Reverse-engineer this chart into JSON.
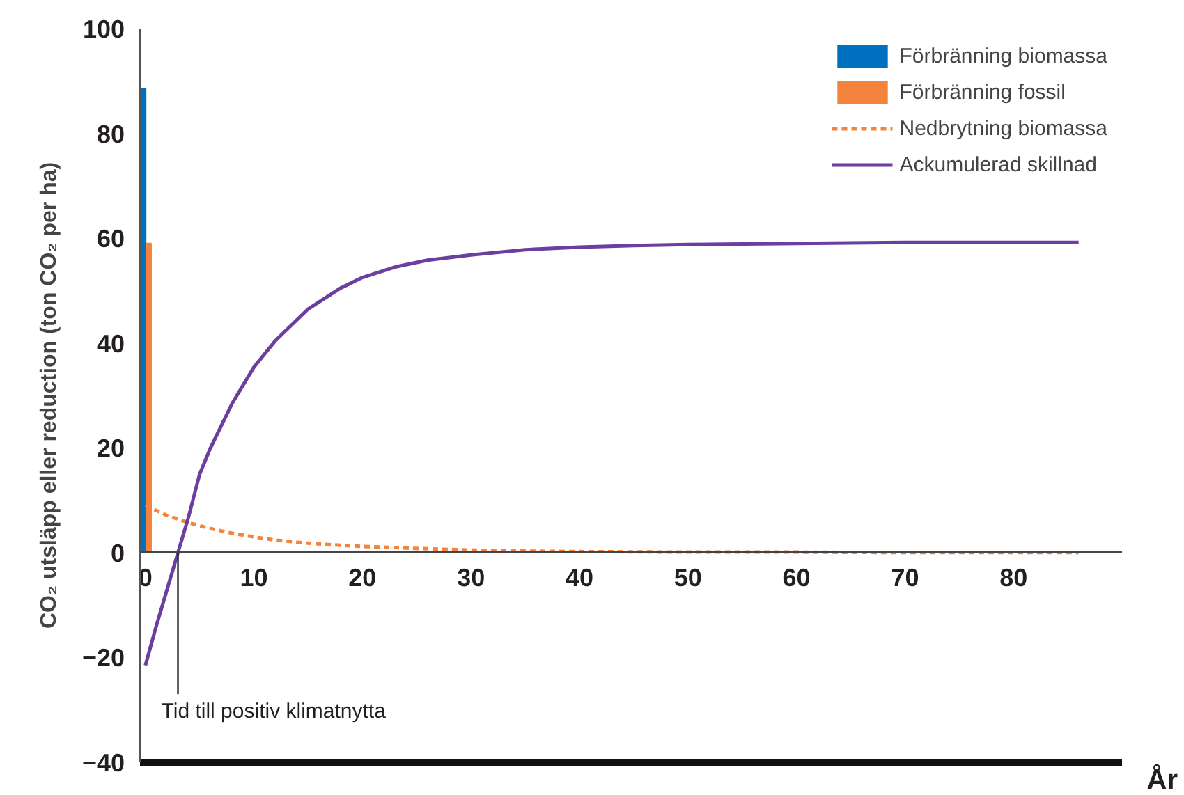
{
  "chart_data": {
    "type": "line",
    "xlabel": "År",
    "ylabel": "CO₂ utsläpp eller reduction (ton CO₂ per ha)",
    "xlim": [
      -0.5,
      90
    ],
    "ylim": [
      -40,
      100
    ],
    "xticks": [
      0,
      10,
      20,
      30,
      40,
      50,
      60,
      70,
      80
    ],
    "yticks": [
      -40,
      -20,
      0,
      20,
      40,
      60,
      80,
      100
    ],
    "grid": false,
    "legend": "top right",
    "series": [
      {
        "name": "Förbränning biomassa",
        "type": "bar",
        "color": "#0070c0",
        "x": [
          -0.2
        ],
        "values": [
          88.5
        ]
      },
      {
        "name": "Förbränning fossil",
        "type": "bar",
        "color": "#f4833d",
        "x": [
          0.3
        ],
        "values": [
          59
        ]
      },
      {
        "name": "Nedbrytning biomassa",
        "line_style": "dashed",
        "color": "#f4833d",
        "x": [
          0,
          2,
          4,
          6,
          8,
          10,
          12,
          15,
          18,
          20,
          25,
          30,
          35,
          40,
          50,
          60,
          70,
          80,
          86
        ],
        "values": [
          9,
          7.1,
          5.7,
          4.6,
          3.7,
          3,
          2.4,
          1.8,
          1.4,
          1.2,
          0.8,
          0.5,
          0.3,
          0.2,
          0.1,
          0.1,
          0,
          0,
          0
        ]
      },
      {
        "name": "Ackumulerad skillnad",
        "line_style": "solid",
        "color": "#6a3fa0",
        "x": [
          0,
          1,
          2,
          3,
          4,
          5,
          6,
          8,
          10,
          12,
          15,
          18,
          20,
          23,
          26,
          30,
          35,
          40,
          45,
          50,
          60,
          70,
          80,
          86
        ],
        "values": [
          -21.5,
          -14,
          -7,
          0,
          7,
          15,
          20,
          28.5,
          35.4,
          40.5,
          46.5,
          50.5,
          52.5,
          54.5,
          55.8,
          56.8,
          57.8,
          58.3,
          58.6,
          58.8,
          59,
          59.2,
          59.2,
          59.2
        ]
      }
    ],
    "annotations": [
      {
        "text": "Tid till positiv klimatnytta",
        "x": 3,
        "y": 0
      }
    ]
  }
}
